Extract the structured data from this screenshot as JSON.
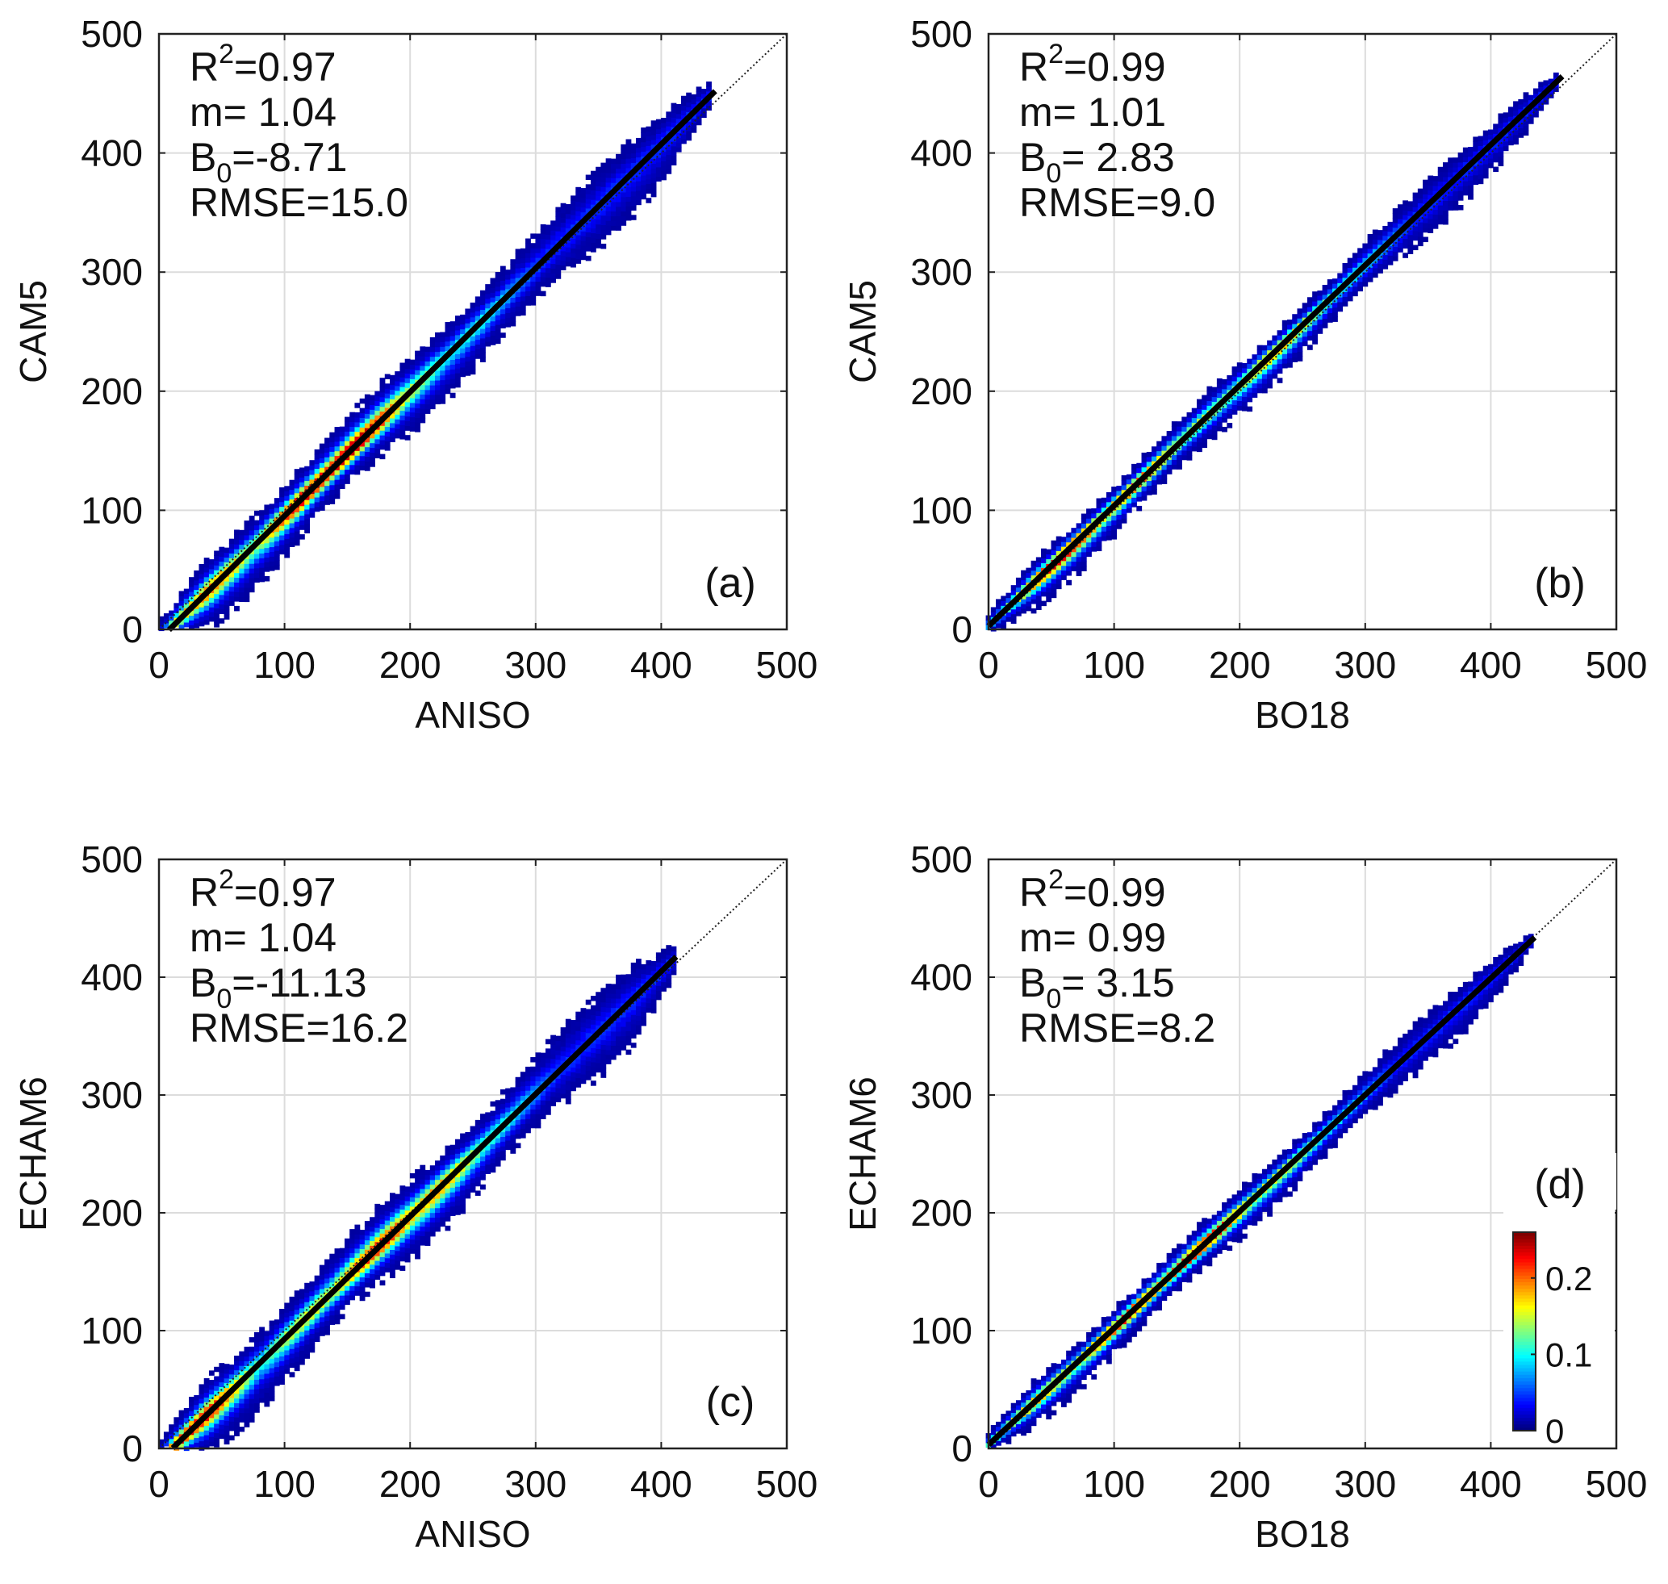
{
  "chart_data": [
    {
      "type": "heatmap",
      "panel_label": "(a)",
      "xlabel": "ANISO",
      "ylabel": "CAM5",
      "xlim": [
        0,
        500
      ],
      "ylim": [
        0,
        500
      ],
      "xticks": [
        0,
        100,
        200,
        300,
        400,
        500
      ],
      "yticks": [
        0,
        100,
        200,
        300,
        400,
        500
      ],
      "grid": true,
      "one_to_one_line": true,
      "stats": {
        "r2_label": "R",
        "r2_sup": "2",
        "r2_value": "=0.97",
        "m": "m= 1.04",
        "b0_label": "B",
        "b0_sub": "0",
        "b0_value": "=-8.71",
        "rmse": "RMSE=15.0"
      },
      "fit_line": {
        "slope": 1.04,
        "intercept": -8.71,
        "x_range": [
          8,
          443
        ]
      },
      "density_band": {
        "x_range": [
          2,
          440
        ],
        "width_below": 30,
        "width_above": 28,
        "core": [
          [
            120,
            0.95
          ],
          [
            155,
            1.0
          ],
          [
            190,
            0.55
          ],
          [
            40,
            0.75
          ],
          [
            250,
            0.35
          ]
        ]
      }
    },
    {
      "type": "heatmap",
      "panel_label": "(b)",
      "xlabel": "BO18",
      "ylabel": "CAM5",
      "xlim": [
        0,
        500
      ],
      "ylim": [
        0,
        500
      ],
      "xticks": [
        0,
        100,
        200,
        300,
        400,
        500
      ],
      "yticks": [
        0,
        100,
        200,
        300,
        400,
        500
      ],
      "grid": true,
      "one_to_one_line": true,
      "stats": {
        "r2_label": "R",
        "r2_sup": "2",
        "r2_value": "=0.99",
        "m": "m= 1.01",
        "b0_label": "B",
        "b0_sub": "0",
        "b0_value": "= 2.83",
        "rmse": "RMSE=9.0"
      },
      "fit_line": {
        "slope": 1.01,
        "intercept": 2.83,
        "x_range": [
          0,
          457
        ]
      },
      "density_band": {
        "x_range": [
          0,
          455
        ],
        "width_below": 22,
        "width_above": 18,
        "core": [
          [
            60,
            0.95
          ],
          [
            120,
            0.8
          ],
          [
            170,
            0.55
          ],
          [
            230,
            0.7
          ],
          [
            280,
            0.4
          ]
        ]
      }
    },
    {
      "type": "heatmap",
      "panel_label": "(c)",
      "xlabel": "ANISO",
      "ylabel": "ECHAM6",
      "xlim": [
        0,
        500
      ],
      "ylim": [
        0,
        500
      ],
      "xticks": [
        0,
        100,
        200,
        300,
        400,
        500
      ],
      "yticks": [
        0,
        100,
        200,
        300,
        400,
        500
      ],
      "grid": true,
      "one_to_one_line": true,
      "stats": {
        "r2_label": "R",
        "r2_sup": "2",
        "r2_value": "=0.97",
        "m": "m= 1.04",
        "b0_label": "B",
        "b0_sub": "0",
        "b0_value": "=-11.13",
        "rmse": "RMSE=16.2"
      },
      "fit_line": {
        "slope": 1.04,
        "intercept": -11.13,
        "x_range": [
          11,
          412
        ]
      },
      "density_band": {
        "x_range": [
          2,
          410
        ],
        "width_below": 32,
        "width_above": 30,
        "core": [
          [
            30,
            0.9
          ],
          [
            120,
            0.6
          ],
          [
            175,
            0.85
          ],
          [
            220,
            0.7
          ],
          [
            260,
            0.4
          ]
        ]
      }
    },
    {
      "type": "heatmap",
      "panel_label": "(d)",
      "xlabel": "BO18",
      "ylabel": "ECHAM6",
      "xlim": [
        0,
        500
      ],
      "ylim": [
        0,
        500
      ],
      "xticks": [
        0,
        100,
        200,
        300,
        400,
        500
      ],
      "yticks": [
        0,
        100,
        200,
        300,
        400,
        500
      ],
      "grid": true,
      "one_to_one_line": true,
      "stats": {
        "r2_label": "R",
        "r2_sup": "2",
        "r2_value": "=0.99",
        "m": "m= 0.99",
        "b0_label": "B",
        "b0_sub": "0",
        "b0_value": "= 3.15",
        "rmse": "RMSE=8.2"
      },
      "fit_line": {
        "slope": 0.99,
        "intercept": 3.15,
        "x_range": [
          0,
          435
        ]
      },
      "density_band": {
        "x_range": [
          0,
          432
        ],
        "width_below": 20,
        "width_above": 18,
        "core": [
          [
            40,
            0.7
          ],
          [
            110,
            0.9
          ],
          [
            170,
            0.95
          ],
          [
            230,
            0.6
          ],
          [
            270,
            0.35
          ]
        ]
      },
      "colorbar": {
        "ticks": [
          0,
          0.1,
          0.2
        ],
        "tick_labels": [
          "0",
          "0.1",
          "0.2"
        ],
        "range": [
          0,
          0.26
        ],
        "colormap": "jet"
      }
    }
  ]
}
